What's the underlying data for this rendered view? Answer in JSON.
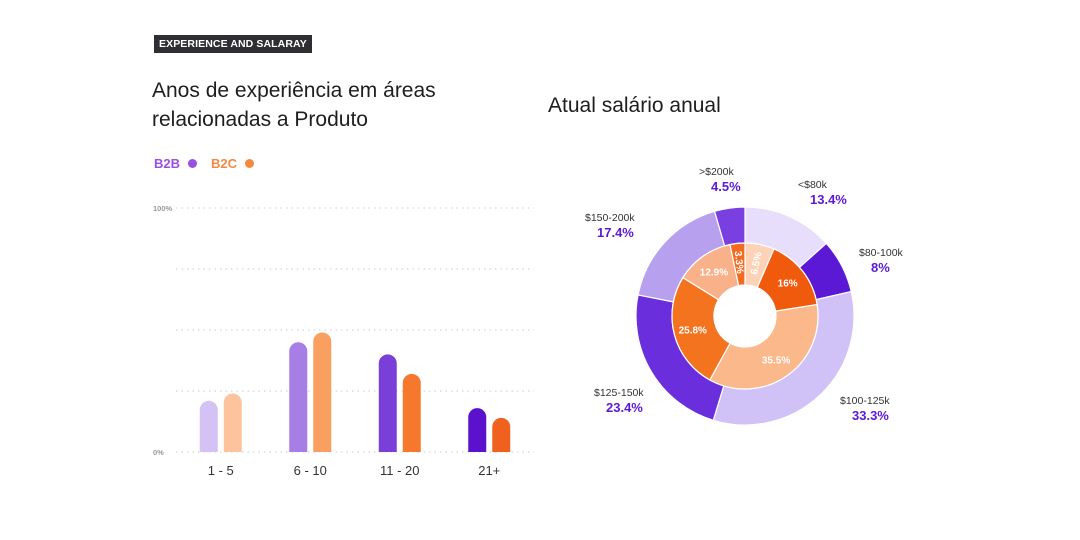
{
  "tag": "EXPERIENCE AND SALARAY",
  "left_title": "Anos de experiência em áreas relacionadas a Produto",
  "right_title": "Atual salário anual",
  "legend": [
    {
      "label": "B2B",
      "color": "#9b4fe0"
    },
    {
      "label": "B2C",
      "color": "#f5893e"
    }
  ],
  "chart_data": [
    {
      "type": "bar",
      "categories": [
        "1 - 5",
        "6 - 10",
        "11 - 20",
        "21+"
      ],
      "ylim": [
        0,
        100
      ],
      "ytick_labels": [
        "100%",
        "0%"
      ],
      "series": [
        {
          "name": "B2B",
          "values": [
            21,
            45,
            40,
            18
          ],
          "colors": [
            "#d4c2f4",
            "#a77de6",
            "#7a3fd8",
            "#5b12cc"
          ]
        },
        {
          "name": "B2C",
          "values": [
            24,
            49,
            32,
            14
          ],
          "colors": [
            "#fcc39d",
            "#f99f60",
            "#f5782e",
            "#f0601e"
          ]
        }
      ]
    },
    {
      "type": "pie",
      "rings": [
        {
          "name": "outer",
          "slices": [
            {
              "label": "<$80k",
              "value": 13.4,
              "display": "13.4%",
              "color": "#e6defb"
            },
            {
              "label": "$80-100k",
              "value": 8,
              "display": "8%",
              "color": "#5b19d6"
            },
            {
              "label": "$100-125k",
              "value": 33.3,
              "display": "33.3%",
              "color": "#d0c1f7"
            },
            {
              "label": "$125-150k",
              "value": 23.4,
              "display": "23.4%",
              "color": "#6a2edc"
            },
            {
              "label": "$150-200k",
              "value": 17.4,
              "display": "17.4%",
              "color": "#b7a0ee"
            },
            {
              "label": ">$200k",
              "value": 4.5,
              "display": "4.5%",
              "color": "#7a3fe0"
            }
          ]
        },
        {
          "name": "inner",
          "slices": [
            {
              "value": 6.5,
              "display": "6.5%",
              "color": "#fcd3b6"
            },
            {
              "value": 16,
              "display": "16%",
              "color": "#f05a0c"
            },
            {
              "value": 35.5,
              "display": "35.5%",
              "color": "#fbb88a"
            },
            {
              "value": 25.8,
              "display": "25.8%",
              "color": "#f4731f"
            },
            {
              "value": 12.9,
              "display": "12.9%",
              "color": "#f9b189"
            },
            {
              "value": 3.3,
              "display": "3.3%",
              "color": "#f46a20"
            }
          ]
        }
      ],
      "label_color": "#5b19d6"
    }
  ]
}
